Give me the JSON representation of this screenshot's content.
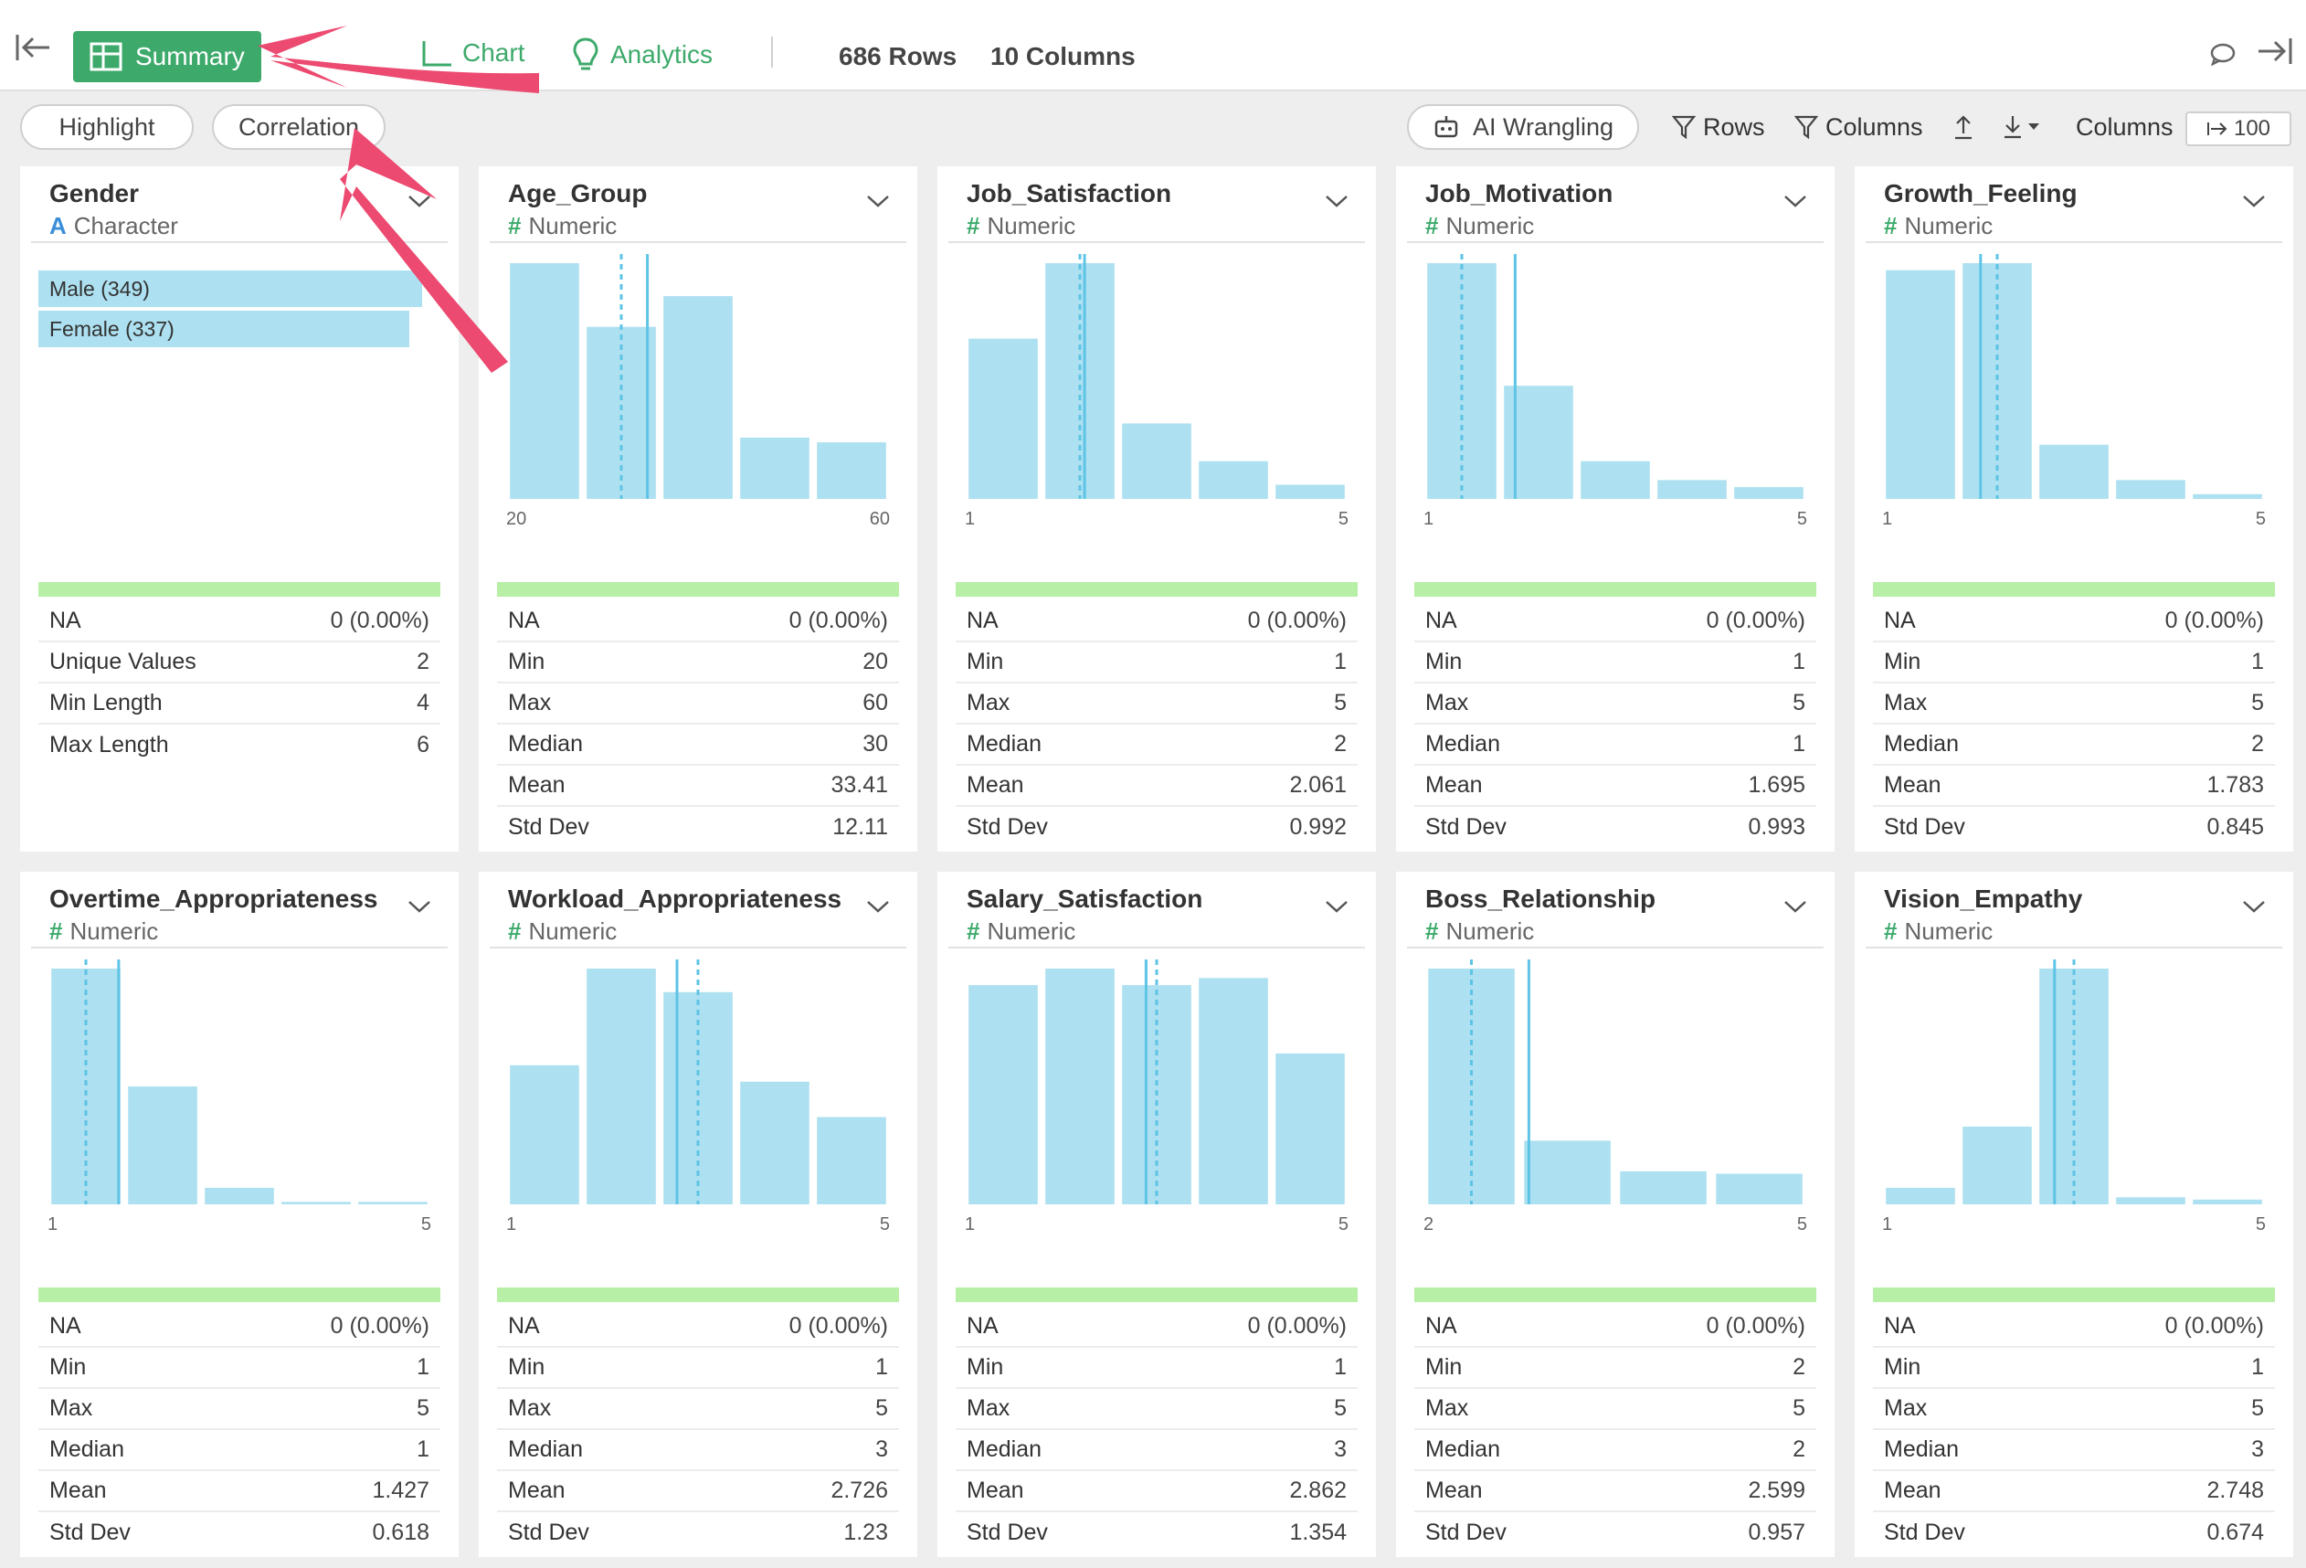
{
  "toolbar": {
    "summary": "Summary",
    "chart": "Chart",
    "analytics": "Analytics",
    "rows": "686 Rows",
    "columns": "10 Columns"
  },
  "filterbar": {
    "highlight": "Highlight",
    "correlation": "Correlation",
    "ai_wrangling": "AI Wrangling",
    "rows_filter": "Rows",
    "columns_filter": "Columns",
    "columns_label": "Columns",
    "columns_limit": "100"
  },
  "colors": {
    "accent": "#3daa6b",
    "bar": "#ade0f0",
    "bar_line": "#5ec4e6",
    "ok_bar": "#b7efa6",
    "arrow": "#ec4a70"
  },
  "icons": [
    "collapse-left-icon",
    "summary-grid-icon",
    "chart-icon",
    "lightbulb-icon",
    "comment-icon",
    "collapse-right-icon",
    "robot-icon",
    "filter-icon",
    "upload-icon",
    "download-icon",
    "chevron-down-icon",
    "arrow-right-bar-icon"
  ],
  "cards": [
    {
      "name": "Gender",
      "type": "Character",
      "type_tag": "A",
      "kind": "category",
      "bars": [
        {
          "label": "Male (349)",
          "value": 349
        },
        {
          "label": "Female (337)",
          "value": 337
        }
      ],
      "stats": [
        {
          "k": "NA",
          "v": "0 (0.00%)"
        },
        {
          "k": "Unique Values",
          "v": "2"
        },
        {
          "k": "Min Length",
          "v": "4"
        },
        {
          "k": "Max Length",
          "v": "6"
        }
      ]
    },
    {
      "name": "Age_Group",
      "type": "Numeric",
      "type_tag": "#",
      "kind": "hist",
      "xmin": "20",
      "xmax": "60",
      "bins": [
        {
          "x": 20,
          "h": 1
        },
        {
          "x": 30,
          "h": 0.73
        },
        {
          "x": 40,
          "h": 0.86
        },
        {
          "x": 55,
          "h": 0.26
        },
        {
          "x": 60,
          "h": 0.24
        }
      ],
      "mean": 33.41,
      "median": 30,
      "stats": [
        {
          "k": "NA",
          "v": "0 (0.00%)"
        },
        {
          "k": "Min",
          "v": "20"
        },
        {
          "k": "Max",
          "v": "60"
        },
        {
          "k": "Median",
          "v": "30"
        },
        {
          "k": "Mean",
          "v": "33.41"
        },
        {
          "k": "Std Dev",
          "v": "12.11"
        }
      ]
    },
    {
      "name": "Job_Satisfaction",
      "type": "Numeric",
      "type_tag": "#",
      "kind": "hist",
      "xmin": "1",
      "xmax": "5",
      "bins": [
        {
          "x": 1,
          "h": 0.68
        },
        {
          "x": 2,
          "h": 1
        },
        {
          "x": 3,
          "h": 0.32
        },
        {
          "x": 4,
          "h": 0.16
        },
        {
          "x": 5,
          "h": 0.06
        }
      ],
      "mean": 2.061,
      "median": 2,
      "stats": [
        {
          "k": "NA",
          "v": "0 (0.00%)"
        },
        {
          "k": "Min",
          "v": "1"
        },
        {
          "k": "Max",
          "v": "5"
        },
        {
          "k": "Median",
          "v": "2"
        },
        {
          "k": "Mean",
          "v": "2.061"
        },
        {
          "k": "Std Dev",
          "v": "0.992"
        }
      ]
    },
    {
      "name": "Job_Motivation",
      "type": "Numeric",
      "type_tag": "#",
      "kind": "hist",
      "xmin": "1",
      "xmax": "5",
      "bins": [
        {
          "x": 1,
          "h": 1
        },
        {
          "x": 2,
          "h": 0.48
        },
        {
          "x": 3,
          "h": 0.16
        },
        {
          "x": 4,
          "h": 0.08
        },
        {
          "x": 5,
          "h": 0.05
        }
      ],
      "mean": 1.695,
      "median": 1,
      "stats": [
        {
          "k": "NA",
          "v": "0 (0.00%)"
        },
        {
          "k": "Min",
          "v": "1"
        },
        {
          "k": "Max",
          "v": "5"
        },
        {
          "k": "Median",
          "v": "1"
        },
        {
          "k": "Mean",
          "v": "1.695"
        },
        {
          "k": "Std Dev",
          "v": "0.993"
        }
      ]
    },
    {
      "name": "Growth_Feeling",
      "type": "Numeric",
      "type_tag": "#",
      "kind": "hist",
      "xmin": "1",
      "xmax": "5",
      "bins": [
        {
          "x": 1,
          "h": 0.97
        },
        {
          "x": 2,
          "h": 1
        },
        {
          "x": 3,
          "h": 0.23
        },
        {
          "x": 4,
          "h": 0.08
        },
        {
          "x": 5,
          "h": 0.02
        }
      ],
      "mean": 1.783,
      "median": 2,
      "stats": [
        {
          "k": "NA",
          "v": "0 (0.00%)"
        },
        {
          "k": "Min",
          "v": "1"
        },
        {
          "k": "Max",
          "v": "5"
        },
        {
          "k": "Median",
          "v": "2"
        },
        {
          "k": "Mean",
          "v": "1.783"
        },
        {
          "k": "Std Dev",
          "v": "0.845"
        }
      ]
    },
    {
      "name": "Overtime_Appropriateness",
      "type": "Numeric",
      "type_tag": "#",
      "kind": "hist",
      "xmin": "1",
      "xmax": "5",
      "bins": [
        {
          "x": 1,
          "h": 1
        },
        {
          "x": 2,
          "h": 0.5
        },
        {
          "x": 3,
          "h": 0.07
        },
        {
          "x": 4,
          "h": 0.01
        },
        {
          "x": 5,
          "h": 0.01
        }
      ],
      "mean": 1.427,
      "median": 1,
      "stats": [
        {
          "k": "NA",
          "v": "0 (0.00%)"
        },
        {
          "k": "Min",
          "v": "1"
        },
        {
          "k": "Max",
          "v": "5"
        },
        {
          "k": "Median",
          "v": "1"
        },
        {
          "k": "Mean",
          "v": "1.427"
        },
        {
          "k": "Std Dev",
          "v": "0.618"
        }
      ]
    },
    {
      "name": "Workload_Appropriateness",
      "type": "Numeric",
      "type_tag": "#",
      "kind": "hist",
      "xmin": "1",
      "xmax": "5",
      "bins": [
        {
          "x": 1,
          "h": 0.59
        },
        {
          "x": 2,
          "h": 1
        },
        {
          "x": 3,
          "h": 0.9
        },
        {
          "x": 4,
          "h": 0.52
        },
        {
          "x": 5,
          "h": 0.37
        }
      ],
      "mean": 2.726,
      "median": 3,
      "stats": [
        {
          "k": "NA",
          "v": "0 (0.00%)"
        },
        {
          "k": "Min",
          "v": "1"
        },
        {
          "k": "Max",
          "v": "5"
        },
        {
          "k": "Median",
          "v": "3"
        },
        {
          "k": "Mean",
          "v": "2.726"
        },
        {
          "k": "Std Dev",
          "v": "1.23"
        }
      ]
    },
    {
      "name": "Salary_Satisfaction",
      "type": "Numeric",
      "type_tag": "#",
      "kind": "hist",
      "xmin": "1",
      "xmax": "5",
      "bins": [
        {
          "x": 1,
          "h": 0.93
        },
        {
          "x": 2,
          "h": 1
        },
        {
          "x": 3,
          "h": 0.93
        },
        {
          "x": 4,
          "h": 0.96
        },
        {
          "x": 5,
          "h": 0.64
        }
      ],
      "mean": 2.862,
      "median": 3,
      "stats": [
        {
          "k": "NA",
          "v": "0 (0.00%)"
        },
        {
          "k": "Min",
          "v": "1"
        },
        {
          "k": "Max",
          "v": "5"
        },
        {
          "k": "Median",
          "v": "3"
        },
        {
          "k": "Mean",
          "v": "2.862"
        },
        {
          "k": "Std Dev",
          "v": "1.354"
        }
      ]
    },
    {
      "name": "Boss_Relationship",
      "type": "Numeric",
      "type_tag": "#",
      "kind": "hist",
      "xmin": "2",
      "xmax": "5",
      "bins": [
        {
          "x": 2,
          "h": 1
        },
        {
          "x": 3,
          "h": 0.27
        },
        {
          "x": 4,
          "h": 0.14
        },
        {
          "x": 5,
          "h": 0.13
        }
      ],
      "mean": 2.599,
      "median": 2,
      "stats": [
        {
          "k": "NA",
          "v": "0 (0.00%)"
        },
        {
          "k": "Min",
          "v": "2"
        },
        {
          "k": "Max",
          "v": "5"
        },
        {
          "k": "Median",
          "v": "2"
        },
        {
          "k": "Mean",
          "v": "2.599"
        },
        {
          "k": "Std Dev",
          "v": "0.957"
        }
      ]
    },
    {
      "name": "Vision_Empathy",
      "type": "Numeric",
      "type_tag": "#",
      "kind": "hist",
      "xmin": "1",
      "xmax": "5",
      "bins": [
        {
          "x": 1,
          "h": 0.07
        },
        {
          "x": 2,
          "h": 0.33
        },
        {
          "x": 3,
          "h": 1
        },
        {
          "x": 4,
          "h": 0.03
        },
        {
          "x": 5,
          "h": 0.02
        }
      ],
      "mean": 2.748,
      "median": 3,
      "stats": [
        {
          "k": "NA",
          "v": "0 (0.00%)"
        },
        {
          "k": "Min",
          "v": "1"
        },
        {
          "k": "Max",
          "v": "5"
        },
        {
          "k": "Median",
          "v": "3"
        },
        {
          "k": "Mean",
          "v": "2.748"
        },
        {
          "k": "Std Dev",
          "v": "0.674"
        }
      ]
    }
  ]
}
